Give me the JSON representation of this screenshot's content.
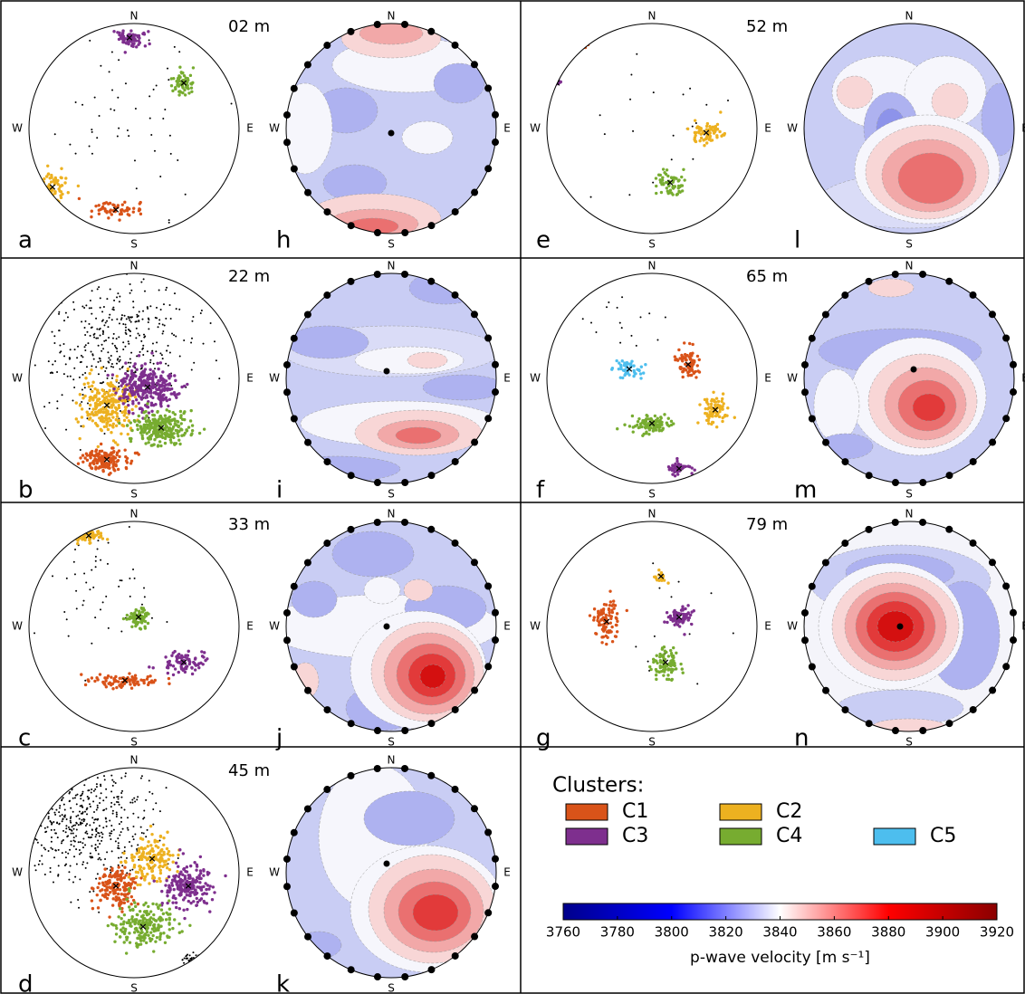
{
  "chart_data": {
    "type": "colorbar",
    "xlim": [
      3760,
      3920
    ],
    "xticks": [
      3760,
      3780,
      3800,
      3820,
      3840,
      3860,
      3880,
      3900,
      3920
    ],
    "xlabel": "p-wave velocity [m s⁻¹]",
    "colors": [
      "#00008b",
      "#0000ff",
      "#ffffff",
      "#ff0000",
      "#8b0000"
    ]
  },
  "panels": [
    {
      "scatter_label": "a",
      "contour_label": "h",
      "depth": "02 m"
    },
    {
      "scatter_label": "b",
      "contour_label": "i",
      "depth": "22 m"
    },
    {
      "scatter_label": "c",
      "contour_label": "j",
      "depth": "33 m"
    },
    {
      "scatter_label": "d",
      "contour_label": "k",
      "depth": "45 m"
    },
    {
      "scatter_label": "e",
      "contour_label": "l",
      "depth": "52 m"
    },
    {
      "scatter_label": "f",
      "contour_label": "m",
      "depth": "65 m"
    },
    {
      "scatter_label": "g",
      "contour_label": "n",
      "depth": "79 m"
    }
  ],
  "compass": {
    "n": "N",
    "s": "S",
    "e": "E",
    "w": "W"
  },
  "legend": {
    "title": "Clusters:",
    "items": [
      {
        "name": "C1",
        "color": "#d95319"
      },
      {
        "name": "C2",
        "color": "#edb120"
      },
      {
        "name": "C3",
        "color": "#7e2f8e"
      },
      {
        "name": "C4",
        "color": "#77ac30"
      },
      {
        "name": "C5",
        "color": "#4dbeee"
      }
    ]
  }
}
